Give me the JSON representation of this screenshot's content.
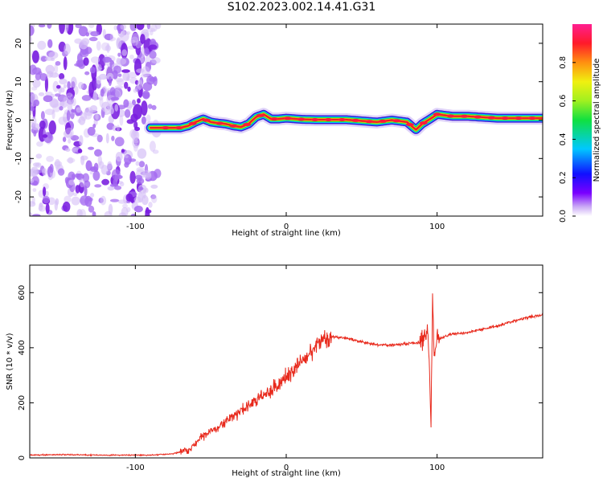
{
  "title": "S102.2023.002.14.41.G31",
  "chart_data": [
    {
      "type": "heatmap",
      "xlabel": "Height of straight line (km)",
      "ylabel": "Frequency (Hz)",
      "xlim": [
        -170,
        170
      ],
      "ylim": [
        -25,
        25
      ],
      "x_ticks": [
        -100,
        0,
        100
      ],
      "y_ticks": [
        -20,
        -10,
        0,
        10,
        20
      ],
      "colorbar": {
        "label": "Normalized spectral amplitude",
        "range": [
          0.0,
          1.0
        ],
        "ticks": [
          0.0,
          0.2,
          0.4,
          0.6,
          0.8
        ],
        "tick_labels": [
          "0.0",
          "0.2",
          "0.4",
          "0.6",
          "0.8"
        ],
        "colormap": "rainbow (white-violet-blue-cyan-green-yellow-orange-red-magenta)"
      },
      "noise_region": {
        "x_range": [
          -170,
          -85
        ],
        "amplitude_max": 0.15
      },
      "signal_ridge": {
        "x": [
          -90,
          -80,
          -70,
          -65,
          -60,
          -55,
          -50,
          -45,
          -40,
          -35,
          -30,
          -25,
          -20,
          -15,
          -10,
          -5,
          0,
          10,
          20,
          40,
          60,
          70,
          80,
          83,
          86,
          90,
          95,
          100,
          110,
          120,
          140,
          160,
          170
        ],
        "frequency_hz": [
          -2,
          -2,
          -2,
          -1.5,
          -0.5,
          0.3,
          -0.5,
          -0.8,
          -1,
          -1.5,
          -1.8,
          -1,
          0.8,
          1.5,
          0.3,
          0.3,
          0.5,
          0.2,
          0.1,
          0.1,
          -0.5,
          0,
          -0.5,
          -1.5,
          -2.5,
          -1,
          0.2,
          1.5,
          1,
          1,
          0.5,
          0.5,
          0.5
        ]
      },
      "grid": false
    },
    {
      "type": "line",
      "xlabel": "Height of straight line (km)",
      "ylabel": "SNR (10 * v/v)",
      "xlim": [
        -170,
        170
      ],
      "ylim": [
        0,
        700
      ],
      "x_ticks": [
        -100,
        0,
        100
      ],
      "y_ticks": [
        0,
        200,
        400,
        600
      ],
      "series": [
        {
          "color": "#e8291c",
          "x": [
            -170,
            -150,
            -120,
            -90,
            -75,
            -65,
            -60,
            -55,
            -50,
            -45,
            -40,
            -35,
            -30,
            -25,
            -20,
            -15,
            -10,
            -5,
            0,
            5,
            10,
            15,
            20,
            25,
            30,
            40,
            50,
            60,
            70,
            80,
            90,
            94,
            96,
            97,
            98,
            100,
            110,
            120,
            140,
            160,
            170
          ],
          "y": [
            10,
            12,
            10,
            10,
            15,
            30,
            50,
            80,
            100,
            115,
            130,
            150,
            170,
            190,
            210,
            225,
            245,
            265,
            295,
            320,
            350,
            380,
            410,
            430,
            440,
            435,
            420,
            410,
            410,
            415,
            420,
            460,
            120,
            600,
            380,
            430,
            450,
            455,
            480,
            510,
            520
          ]
        }
      ],
      "grid": false
    }
  ]
}
